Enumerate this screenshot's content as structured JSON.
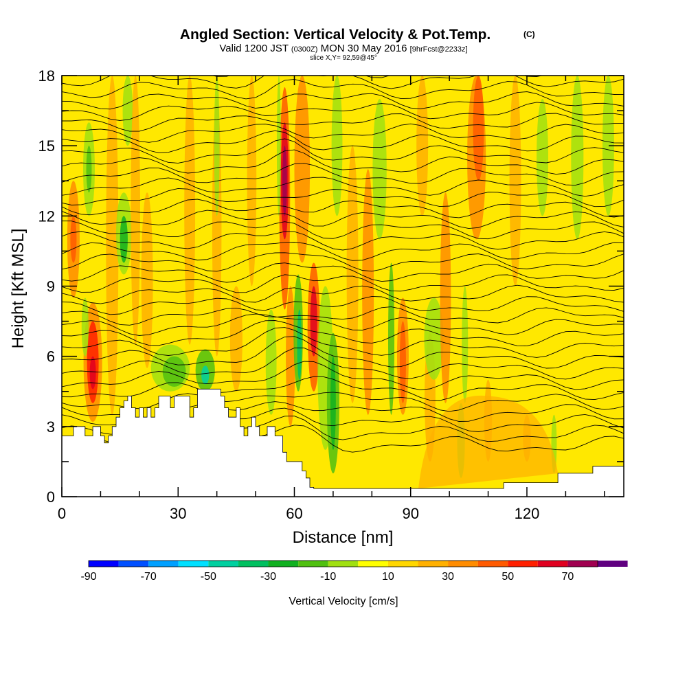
{
  "title": {
    "main": "Angled Section: Vertical Velocity & Pot.Temp.",
    "main_suffix": "(C)",
    "valid_prefix": "Valid 1200 JST",
    "valid_utc": "(0300Z)",
    "valid_date": "MON 30 May 2016",
    "forecast": "[9hrFcst@2233z]",
    "slice": "slice X,Y= 92,59@45°"
  },
  "chart_data": {
    "type": "heatmap",
    "xlabel": "Distance [nm]",
    "ylabel": "Height [Kft MSL]",
    "xlim": [
      0,
      145
    ],
    "ylim": [
      0,
      18
    ],
    "x_ticks": [
      0,
      30,
      60,
      90,
      120
    ],
    "x_tick_labels": [
      "0",
      "30",
      "60",
      "90",
      "120"
    ],
    "y_ticks": [
      0,
      3,
      6,
      9,
      12,
      15,
      18
    ],
    "y_tick_labels": [
      "0",
      "3",
      "6",
      "9",
      "12",
      "15",
      "18"
    ],
    "colorbar": {
      "title": "Vertical Velocity [cm/s]",
      "bounds": [
        -90,
        80
      ],
      "step": 10,
      "labels": [
        "-90",
        "-70",
        "-50",
        "-30",
        "-10",
        "10",
        "30",
        "50",
        "70"
      ],
      "label_values": [
        -90,
        -70,
        -50,
        -30,
        -10,
        10,
        30,
        50,
        70
      ],
      "colors": [
        "#0000ff",
        "#0050ff",
        "#00a0ff",
        "#00e0ff",
        "#00d0a0",
        "#00c060",
        "#10b020",
        "#50c010",
        "#a0e010",
        "#ffff00",
        "#ffd700",
        "#ffb000",
        "#ff8c00",
        "#ff5a00",
        "#ff2000",
        "#e00020",
        "#a00050",
        "#600080"
      ]
    },
    "terrain_kft": [
      [
        0,
        2.6
      ],
      [
        3,
        2.6
      ],
      [
        3,
        3.0
      ],
      [
        6,
        3.0
      ],
      [
        6,
        2.6
      ],
      [
        8,
        2.6
      ],
      [
        8,
        3.0
      ],
      [
        10,
        3.0
      ],
      [
        10,
        2.6
      ],
      [
        11,
        2.6
      ],
      [
        11,
        2.3
      ],
      [
        12,
        2.3
      ],
      [
        12,
        2.6
      ],
      [
        13,
        2.6
      ],
      [
        13,
        3.0
      ],
      [
        14,
        3.0
      ],
      [
        14,
        3.4
      ],
      [
        15,
        3.4
      ],
      [
        15,
        3.8
      ],
      [
        16,
        3.8
      ],
      [
        16,
        4.1
      ],
      [
        17,
        4.1
      ],
      [
        17,
        4.3
      ],
      [
        18,
        4.3
      ],
      [
        18,
        3.8
      ],
      [
        19,
        3.8
      ],
      [
        19,
        3.4
      ],
      [
        20,
        3.4
      ],
      [
        20,
        3.8
      ],
      [
        21,
        3.8
      ],
      [
        21,
        3.4
      ],
      [
        22,
        3.4
      ],
      [
        22,
        3.8
      ],
      [
        23,
        3.8
      ],
      [
        23,
        3.4
      ],
      [
        24,
        3.4
      ],
      [
        24,
        3.8
      ],
      [
        25,
        3.8
      ],
      [
        25,
        4.3
      ],
      [
        28,
        4.3
      ],
      [
        28,
        3.8
      ],
      [
        29,
        3.8
      ],
      [
        29,
        4.3
      ],
      [
        33,
        4.3
      ],
      [
        33,
        3.4
      ],
      [
        34,
        3.4
      ],
      [
        34,
        3.8
      ],
      [
        35,
        3.8
      ],
      [
        35,
        4.6
      ],
      [
        41,
        4.6
      ],
      [
        41,
        4.3
      ],
      [
        42,
        4.3
      ],
      [
        42,
        3.8
      ],
      [
        43,
        3.8
      ],
      [
        43,
        3.4
      ],
      [
        45,
        3.4
      ],
      [
        45,
        3.8
      ],
      [
        46,
        3.8
      ],
      [
        46,
        3.0
      ],
      [
        47,
        3.0
      ],
      [
        47,
        2.6
      ],
      [
        48,
        2.6
      ],
      [
        48,
        3.0
      ],
      [
        49,
        3.0
      ],
      [
        49,
        3.4
      ],
      [
        50,
        3.4
      ],
      [
        50,
        3.0
      ],
      [
        51,
        3.0
      ],
      [
        51,
        2.6
      ],
      [
        53,
        2.6
      ],
      [
        53,
        3.0
      ],
      [
        55,
        3.0
      ],
      [
        55,
        2.6
      ],
      [
        57,
        2.6
      ],
      [
        57,
        1.9
      ],
      [
        58,
        1.9
      ],
      [
        58,
        1.5
      ],
      [
        62,
        1.5
      ],
      [
        62,
        1.1
      ],
      [
        63,
        1.1
      ],
      [
        63,
        0.8
      ],
      [
        64,
        0.8
      ],
      [
        64,
        0.4
      ],
      [
        65,
        0.4
      ],
      [
        65,
        0.35
      ],
      [
        114,
        0.35
      ],
      [
        114,
        0.6
      ],
      [
        128,
        0.6
      ],
      [
        128,
        1.0
      ],
      [
        137,
        1.0
      ],
      [
        137,
        1.3
      ],
      [
        145,
        1.3
      ]
    ]
  }
}
